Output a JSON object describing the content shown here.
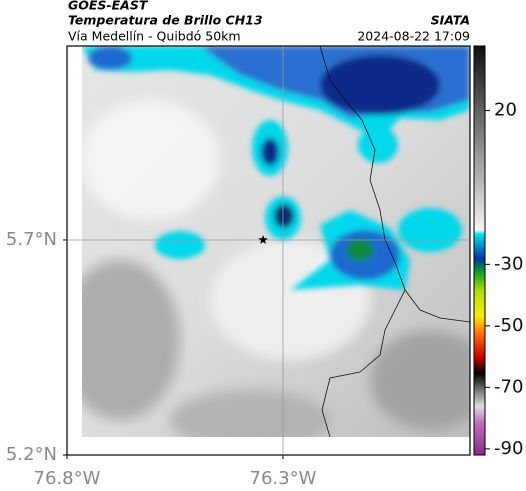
{
  "header": {
    "title": "GOES-EAST",
    "subtitle": "Temperatura de Brillo CH13",
    "route": "Vía Medellín - Quibdó 50km",
    "source": "SIATA",
    "timestamp": "2024-08-22 17:09"
  },
  "map": {
    "xlim": [
      -76.8,
      -75.867
    ],
    "ylim": [
      5.2,
      6.151
    ],
    "xticks": [
      {
        "value": -76.8,
        "label": "76.8°W"
      },
      {
        "value": -76.3,
        "label": "76.3°W"
      }
    ],
    "yticks": [
      {
        "value": 5.2,
        "label": "5.2°N"
      },
      {
        "value": 5.7,
        "label": "5.7°N"
      }
    ],
    "grid": true,
    "marker": {
      "lon": -76.346,
      "lat": 5.7
    }
  },
  "colorbar": {
    "lim": [
      -92,
      41
    ],
    "ticks": [
      20,
      -30,
      -50,
      -70,
      -90
    ]
  }
}
